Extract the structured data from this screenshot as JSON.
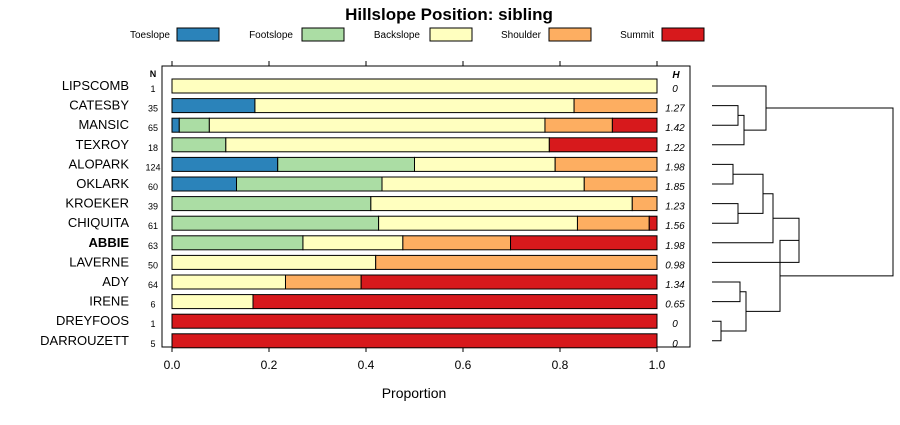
{
  "chart_data": {
    "type": "bar",
    "title": "Hillslope Position: sibling",
    "xlabel": "Proportion",
    "xlim": [
      0,
      1
    ],
    "xticks": [
      "0.0",
      "0.2",
      "0.4",
      "0.6",
      "0.8",
      "1.0"
    ],
    "n_header": "N",
    "h_header": "H",
    "legend": [
      {
        "name": "Toeslope",
        "color": "#2b83ba"
      },
      {
        "name": "Footslope",
        "color": "#abdda4"
      },
      {
        "name": "Backslope",
        "color": "#ffffbf"
      },
      {
        "name": "Shoulder",
        "color": "#fdae61"
      },
      {
        "name": "Summit",
        "color": "#d7191c"
      }
    ],
    "rows": [
      {
        "name": "LIPSCOMB",
        "n": "1",
        "h": "0",
        "values": [
          0,
          0,
          1.0,
          0,
          0
        ],
        "bold": false
      },
      {
        "name": "CATESBY",
        "n": "35",
        "h": "1.27",
        "values": [
          0.171,
          0,
          0.658,
          0.171,
          0
        ],
        "bold": false
      },
      {
        "name": "MANSIC",
        "n": "65",
        "h": "1.42",
        "values": [
          0.015,
          0.062,
          0.692,
          0.139,
          0.092
        ],
        "bold": false
      },
      {
        "name": "TEXROY",
        "n": "18",
        "h": "1.22",
        "values": [
          0,
          0.111,
          0.667,
          0,
          0.222
        ],
        "bold": false
      },
      {
        "name": "ALOPARK",
        "n": "124",
        "h": "1.98",
        "values": [
          0.218,
          0.282,
          0.29,
          0.21,
          0
        ],
        "bold": false
      },
      {
        "name": "OKLARK",
        "n": "60",
        "h": "1.85",
        "values": [
          0.133,
          0.3,
          0.417,
          0.15,
          0
        ],
        "bold": false
      },
      {
        "name": "KROEKER",
        "n": "39",
        "h": "1.23",
        "values": [
          0,
          0.41,
          0.539,
          0.051,
          0
        ],
        "bold": false
      },
      {
        "name": "CHIQUITA",
        "n": "61",
        "h": "1.56",
        "values": [
          0,
          0.426,
          0.41,
          0.148,
          0.016
        ],
        "bold": false
      },
      {
        "name": "ABBIE",
        "n": "63",
        "h": "1.98",
        "values": [
          0,
          0.27,
          0.206,
          0.222,
          0.302
        ],
        "bold": true
      },
      {
        "name": "LAVERNE",
        "n": "50",
        "h": "0.98",
        "values": [
          0,
          0,
          0.42,
          0.58,
          0
        ],
        "bold": false
      },
      {
        "name": "ADY",
        "n": "64",
        "h": "1.34",
        "values": [
          0,
          0,
          0.234,
          0.156,
          0.61
        ],
        "bold": false
      },
      {
        "name": "IRENE",
        "n": "6",
        "h": "0.65",
        "values": [
          0,
          0,
          0.167,
          0,
          0.833
        ],
        "bold": false
      },
      {
        "name": "DREYFOOS",
        "n": "1",
        "h": "0",
        "values": [
          0,
          0,
          0,
          0,
          1.0
        ],
        "bold": false
      },
      {
        "name": "DARROUZETT",
        "n": "5",
        "h": "0",
        "values": [
          0,
          0,
          0,
          0,
          1.0
        ],
        "bold": false
      }
    ]
  }
}
